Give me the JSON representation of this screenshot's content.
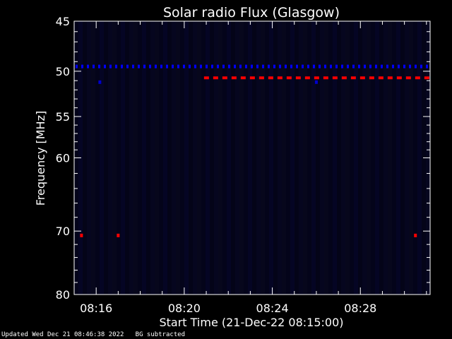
{
  "chart_data": {
    "type": "heatmap",
    "title": "Solar radio Flux (Glasgow)",
    "xlabel": "Start Time (21-Dec-22 08:15:00)",
    "ylabel": "Frequency [MHz]",
    "x_unit": "time",
    "xlim": [
      "08:15:00",
      "08:31:10"
    ],
    "ylim": [
      45,
      80
    ],
    "y_scale": "log",
    "x_ticks": [
      "08:16",
      "08:20",
      "08:24",
      "08:28"
    ],
    "y_ticks": [
      45,
      50,
      55,
      60,
      70,
      80
    ],
    "grid": false,
    "features": [
      {
        "kind": "dashed-emission",
        "color": "#0000ff",
        "frequency_mhz": 49.5,
        "time_start": "08:15:00",
        "time_end": "08:31:10"
      },
      {
        "kind": "dashed-emission",
        "color": "#ff0000",
        "frequency_mhz": 50.7,
        "time_start": "08:20:50",
        "time_end": "08:31:10"
      },
      {
        "kind": "spot",
        "color": "#ff0000",
        "frequency_mhz": 70.7,
        "time": "08:15:20"
      },
      {
        "kind": "spot",
        "color": "#ff0000",
        "frequency_mhz": 70.7,
        "time": "08:17:00"
      },
      {
        "kind": "spot",
        "color": "#ff0000",
        "frequency_mhz": 70.7,
        "time": "08:30:30"
      },
      {
        "kind": "spot",
        "color": "#0000cc",
        "frequency_mhz": 51.2,
        "time": "08:16:10"
      },
      {
        "kind": "spot",
        "color": "#0000cc",
        "frequency_mhz": 51.2,
        "time": "08:26:00"
      }
    ],
    "colors": {
      "background": "#000000",
      "plot_background": "#05051a",
      "axes": "#ffffff"
    }
  },
  "footer": {
    "updated": "Updated Wed Dec 21 08:46:38 2022",
    "note": "BG subtracted"
  }
}
